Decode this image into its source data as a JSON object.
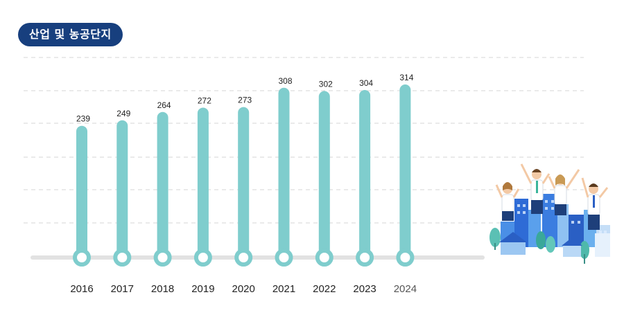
{
  "header": {
    "title": "산업 및 농공단지"
  },
  "colors": {
    "badge_bg": "#173f7e",
    "bar": "#7fcdcd",
    "baseline": "#e2e2e2",
    "grid": "#d6d6d6",
    "text": "#222222",
    "text_highlight": "#555555"
  },
  "chart_data": {
    "type": "bar",
    "categories": [
      "2016",
      "2017",
      "2018",
      "2019",
      "2020",
      "2021",
      "2022",
      "2023",
      "2024"
    ],
    "values": [
      239,
      249,
      264,
      272,
      273,
      308,
      302,
      304,
      314
    ],
    "title": "산업 및 농공단지",
    "xlabel": "",
    "ylabel": "",
    "ylim": [
      0,
      340
    ],
    "grid": true,
    "legend": "none",
    "data_labels": true
  },
  "illustration": {
    "icon": "celebrating-people-city-illustration"
  }
}
